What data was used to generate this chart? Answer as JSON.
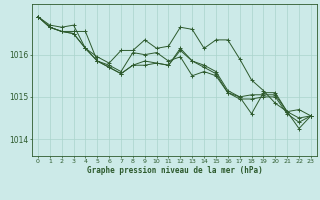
{
  "title": "Graphe pression niveau de la mer (hPa)",
  "bg_color": "#cceae8",
  "grid_color": "#aad4cc",
  "line_color": "#2d5a2d",
  "x_ticks": [
    0,
    1,
    2,
    3,
    4,
    5,
    6,
    7,
    8,
    9,
    10,
    11,
    12,
    13,
    14,
    15,
    16,
    17,
    18,
    19,
    20,
    21,
    22,
    23
  ],
  "y_ticks": [
    1014,
    1015,
    1016
  ],
  "ylim": [
    1013.6,
    1017.2
  ],
  "xlim": [
    -0.5,
    23.5
  ],
  "series": [
    [
      1016.9,
      1016.7,
      1016.65,
      1016.7,
      1016.15,
      1015.95,
      1015.8,
      1016.1,
      1016.1,
      1016.35,
      1016.15,
      1016.2,
      1016.65,
      1016.6,
      1016.15,
      1016.35,
      1016.35,
      1015.9,
      1015.4,
      1015.15,
      1014.85,
      1014.65,
      1014.7,
      1014.55
    ],
    [
      1016.9,
      1016.65,
      1016.55,
      1016.55,
      1016.55,
      1015.85,
      1015.75,
      1015.6,
      1016.05,
      1016.0,
      1016.05,
      1015.85,
      1015.95,
      1015.5,
      1015.6,
      1015.5,
      1015.1,
      1015.0,
      1014.6,
      1015.1,
      1015.1,
      1014.65,
      1014.25,
      1014.55
    ],
    [
      1016.9,
      1016.65,
      1016.55,
      1016.5,
      1016.15,
      1015.85,
      1015.7,
      1015.55,
      1015.75,
      1015.85,
      1015.8,
      1015.75,
      1016.15,
      1015.85,
      1015.75,
      1015.6,
      1015.15,
      1015.0,
      1015.05,
      1015.05,
      1015.05,
      1014.65,
      1014.5,
      1014.55
    ],
    [
      1016.9,
      1016.65,
      1016.55,
      1016.5,
      1016.15,
      1015.85,
      1015.7,
      1015.55,
      1015.75,
      1015.75,
      1015.8,
      1015.75,
      1016.1,
      1015.85,
      1015.7,
      1015.55,
      1015.1,
      1014.95,
      1014.95,
      1015.0,
      1015.0,
      1014.6,
      1014.4,
      1014.55
    ]
  ]
}
